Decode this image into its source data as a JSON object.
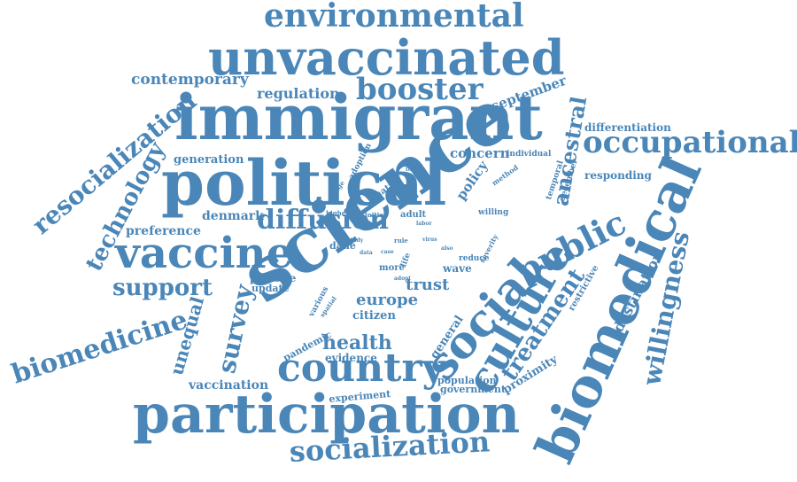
{
  "colors": {
    "word": "#4a86b7",
    "background": "#ffffff"
  },
  "words": {
    "science": "science",
    "immigrant": "immigrant",
    "political": "political",
    "unvaccinated": "unvaccinated",
    "participation": "participation",
    "biomedical": "biomedical",
    "country": "country",
    "vaccine": "vaccine",
    "social": "social",
    "culture": "culture",
    "environmental": "environmental",
    "occupational": "occupational",
    "booster": "booster",
    "diffusion": "diffusion",
    "socialization": "socialization",
    "biomedicine": "biomedicine",
    "public": "public",
    "willingness": "willingness",
    "resocialization": "resocialization",
    "technology": "technology",
    "treatment": "treatment",
    "survey": "survey",
    "support": "support",
    "ancestral": "ancestral",
    "unequal": "unequal",
    "health": "health",
    "contemporary": "contemporary",
    "regulation": "regulation",
    "september": "september",
    "destination": "destination",
    "europe": "europe",
    "trust": "trust",
    "preference": "preference",
    "denmark": "denmark",
    "generation": "generation",
    "concern": "concern",
    "policy": "policy",
    "vaccination": "vaccination",
    "citizen": "citizen",
    "general": "general",
    "proximity": "proximity",
    "differentiation": "differentiation",
    "responding": "responding",
    "positive": "positive",
    "update": "update",
    "evidence": "evidence",
    "pandemic": "pandemic",
    "population": "population",
    "government": "government",
    "experiment": "experiment",
    "restrictive": "restrictive",
    "wave": "wave",
    "more": "more",
    "adult": "adult",
    "dane": "dane",
    "higher": "higher",
    "initial": "initial",
    "native": "native",
    "adoption": "adoption",
    "change": "change",
    "individual": "individual",
    "method": "method",
    "temporal": "temporal",
    "december": "december",
    "willing": "willing",
    "severity": "severity",
    "reduce": "reduce",
    "life": "life",
    "various": "various",
    "spatial": "spatial",
    "study": "study",
    "data": "data",
    "rule": "rule",
    "virus": "virus",
    "labor": "labor",
    "adopt": "adopt",
    "focus": "focus",
    "case": "case",
    "also": "also"
  }
}
